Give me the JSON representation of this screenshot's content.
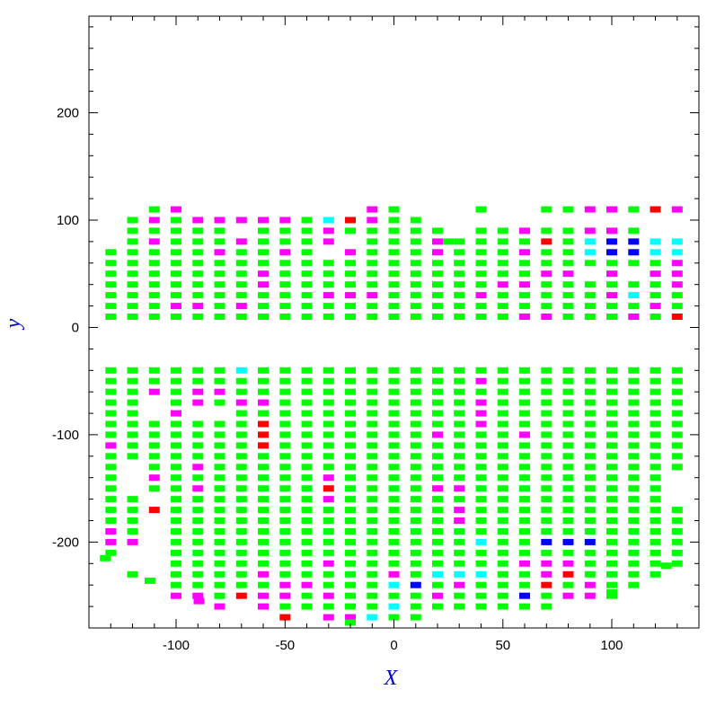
{
  "chart_data": {
    "type": "heatmap",
    "xlabel": "X",
    "ylabel": "y",
    "xlim": [
      -140,
      140
    ],
    "ylim": [
      -280,
      290
    ],
    "x_ticks": [
      -100,
      -50,
      0,
      50,
      100
    ],
    "y_ticks": [
      -200,
      -100,
      0,
      100,
      200
    ],
    "grid": false,
    "legend": "none",
    "x_columns": [
      -130,
      -120,
      -110,
      -100,
      -90,
      -80,
      -70,
      -60,
      -50,
      -40,
      -30,
      -20,
      -10,
      0,
      10,
      20,
      30,
      40,
      50,
      60,
      70,
      80,
      90,
      100,
      110,
      120,
      130
    ],
    "colors": {
      "g": "#00ff00",
      "m": "#ff00ff",
      "c": "#00ffff",
      "r": "#ff0000",
      "b": "#0000ff",
      "axis": "#000000",
      "label": "#0000cc"
    },
    "rows": [
      {
        "y": 110,
        "cells": ".. .. g. m. .. .. .. .. .. .. .. .. m. g. .. .. .. g. .. .. g. g. m. m. g. r. m."
      },
      {
        "y": 100,
        "cells": ".. g. m. g. m. m. m. m. m. g. c. r. m. g. g. .. .. .. .. .. .. .. .. .. .. .. .."
      },
      {
        "y": 90,
        "cells": ".. g. g. g. g. g. .. g. g. g. m. g. g. g. g. g. .. g. g. m. g. g. m. m. g. .. .."
      },
      {
        "y": 80,
        "cells": ".. g. m. g. g. g. m. g. g. g. m. .. g. g. g. m. g. g. g. g. r. g. c. b. b. c. c."
      },
      {
        "y": 70,
        "cells": "g. g. g. g. g. m. g. g. m. g. .. m. g. g. g. m. g. g. g. m. g. g. c. b. b. c. c."
      },
      {
        "y": 60,
        "cells": "g. g. g. g. g. g. g. g. g. g. g. g. g. g. g. g. g. g. g. g. g. g. g. g. g. g. m."
      },
      {
        "y": 50,
        "cells": "g. g. g. g. g. g. g. m. g. g. g. g. g. g. g. g. g. g. g. g. m. m. .. m. .. m. m."
      },
      {
        "y": 40,
        "cells": "g. g. g. g. g. g. g. m. g. g. g. g. g. g. g. g. g. g. m. m. g. g. g. g. g. g. m."
      },
      {
        "y": 30,
        "cells": "g. g. g. g. g. g. g. g. g. g. m. m. m. g. g. g. g. m. g. g. g. g. g. m. c. g. g."
      },
      {
        "y": 20,
        "cells": "g. g. g. m. m. g. m. g. g. g. g. g. g. g. g. g. g. g. g. g. g. g. g. g. g. m. g."
      },
      {
        "y": 10,
        "cells": "g. g. g. g. g. g. g. g. g. g. g. g. g. g. g. g. g. g. g. m. m. g. g. g. m. g. r."
      },
      {
        "y": -40,
        "cells": "g. g. g. g. g. g. c. g. g. g. g. g. g. g. g. g. g. g. g. g. g. g. g. g. g. g. g."
      },
      {
        "y": -50,
        "cells": "g. g. g. g. g. g. g. g. g. g. g. g. g. g. g. g. g. m. g. g. g. g. g. g. g. g. g."
      },
      {
        "y": -60,
        "cells": "g. g. m. g. m. m. g. g. g. g. g. g. g. g. g. g. g. g. g. g. g. g. g. g. g. g. g."
      },
      {
        "y": -70,
        "cells": "g. g. .. g. m. g. m. m. g. g. g. g. g. g. g. g. g. m. g. g. g. g. g. g. g. g. g."
      },
      {
        "y": -80,
        "cells": "g. g. .. m. .. .. g. g. g. g. g. g. g. g. g. g. g. m. g. g. g. g. g. g. g. g. g."
      },
      {
        "y": -90,
        "cells": "g. g. g. g. g. g. g. r. g. g. g. g. g. g. g. g. g. m. g. g. g. g. g. g. g. g. g."
      },
      {
        "y": -100,
        "cells": "g. g. g. g. g. g. g. r. g. g. g. g. g. g. g. m. g. g. g. m. g. g. g. g. g. g. g."
      },
      {
        "y": -110,
        "cells": "m. g. g. g. g. g. g. r. g. g. g. g. g. g. g. g. g. g. g. g. g. g. g. g. g. g. g."
      },
      {
        "y": -120,
        "cells": "g. g. g. g. g. g. g. g. g. g. g. g. g. g. g. g. g. g. g. g. g. g. g. g. g. g. g."
      },
      {
        "y": -130,
        "cells": "g. .. g. g. m. g. g. g. g. g. g. g. g. g. g. g. g. g. g. g. g. g. g. g. g. g. g."
      },
      {
        "y": -140,
        "cells": "g. .. m. g. g. g. g. g. g. g. m. g. g. g. g. g. g. g. g. g. g. g. g. g. g. g. .."
      },
      {
        "y": -150,
        "cells": "g. .. g. g. m. g. g. g. g. g. r. g. g. g. g. m. m. g. g. g. g. g. g. g. g. g. .."
      },
      {
        "y": -160,
        "cells": "g. g. .. g. g. g. g. g. g. g. m. g. g. g. g. g. g. g. g. g. g. g. g. g. g. g. .."
      },
      {
        "y": -170,
        "cells": "g. g. r. g. g. g. g. g. g. g. g. g. g. g. g. g. m. g. g. g. g. g. g. g. g. g. g."
      },
      {
        "y": -180,
        "cells": "g. g. .. g. g. g. g. g. g. g. g. g. g. g. g. g. m. g. g. g. g. g. g. g. g. g. g."
      },
      {
        "y": -190,
        "cells": "m. g. .. g. g. g. g. g. g. g. g. g. g. g. g. g. g. g. g. g. g. g. g. g. g. g. g."
      },
      {
        "y": -200,
        "cells": "m. m. .. g. g. g. g. g. g. g. g. g. g. g. g. g. g. c. g. g. b. b. b. g. g. g. g."
      },
      {
        "y": -210,
        "cells": "g. .. .. g. g. g. g. g. g. g. g. g. g. g. g. g. g. g. g. g. g. g. g. g. g. g. g."
      },
      {
        "y": -220,
        "cells": ".. .. .. g. g. g. g. g. g. g. m. g. g. g. g. g. g. g. g. m. m. m. g. g. g. g. g."
      },
      {
        "y": -230,
        "cells": ".. g. .. g. g. g. g. m. g. g. g. g. g. m. g. c. c. c. g. g. m. r. g. g. g. g. .."
      },
      {
        "y": -240,
        "cells": ".. .. .. g. g. g. g. g. m. m. g. g. g. c. b. g. m. g. g. g. r. g. m. g. g. .. .."
      },
      {
        "y": -250,
        "cells": ".. .. .. m. m. g. r. m. m. g. m. g. g. g. g. m. g. g. g. b. g. m. m. g. .. .. .."
      },
      {
        "y": -260,
        "cells": ".. .. .. .. .. m. .. m. g. g. g. g. g. c. g. g. g. g. g. g. g. .. .. .. .. .. .."
      },
      {
        "y": -270,
        "cells": ".. .. .. .. .. .. .. .. r. .. m. m. c. g. g. .. .. .. .. .. .. .. .. .. .. .. .."
      }
    ],
    "extra_cells": [
      {
        "x": -132.5,
        "y": -215,
        "c": "g"
      },
      {
        "x": -112,
        "y": -236,
        "c": "g"
      },
      {
        "x": -89.5,
        "y": -255,
        "c": "m"
      },
      {
        "x": -20,
        "y": -275,
        "c": "g"
      },
      {
        "x": 25,
        "y": 80,
        "c": "g"
      },
      {
        "x": 100,
        "y": -247,
        "c": "g"
      },
      {
        "x": 125,
        "y": -222,
        "c": "g"
      }
    ]
  }
}
